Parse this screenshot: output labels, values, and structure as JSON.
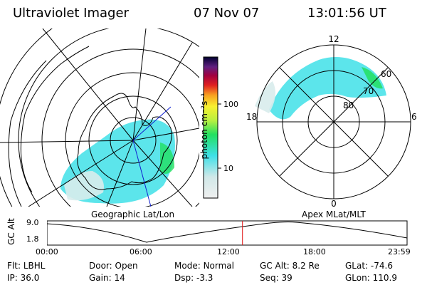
{
  "header": {
    "title": "Ultraviolet Imager",
    "date": "07 Nov 07",
    "time": "13:01:56 UT"
  },
  "colorbar": {
    "label": "photon cm⁻²s⁻¹",
    "ticks": [
      {
        "label": "100",
        "value": 100
      },
      {
        "label": "10",
        "value": 10
      }
    ]
  },
  "maps": {
    "geographic_label": "Geographic Lat/Lon",
    "apex_label": "Apex  MLat/MLT",
    "polar_mlt_labels": {
      "top": "12",
      "left": "18",
      "right": "6",
      "bottom": "0"
    },
    "polar_lat_labels": [
      "60",
      "70",
      "80"
    ]
  },
  "altitude_plot": {
    "ylabel": "GC Alt",
    "y_ticks": [
      "9.0",
      "1.8"
    ],
    "x_ticks": [
      "00:00",
      "06:00",
      "12:00",
      "18:00",
      "23:59"
    ],
    "current_time_hours": 13.03
  },
  "status": {
    "row1": [
      {
        "key": "Flt:",
        "value": "LBHL"
      },
      {
        "key": "Door:",
        "value": "Open"
      },
      {
        "key": "Mode:",
        "value": "Normal"
      },
      {
        "key": "GC Alt:",
        "value": "8.2 Re"
      },
      {
        "key": "GLat:",
        "value": "-74.6"
      }
    ],
    "row2": [
      {
        "key": "IP:",
        "value": "36.0"
      },
      {
        "key": "Gain:",
        "value": "14"
      },
      {
        "key": "Dsp:",
        "value": "-3.3"
      },
      {
        "key": "Seq:",
        "value": "39"
      },
      {
        "key": "GLon:",
        "value": "110.9"
      }
    ]
  },
  "colors": {
    "cyan": "#3fe0e8",
    "green": "#22e060",
    "marker": "#e01010"
  }
}
